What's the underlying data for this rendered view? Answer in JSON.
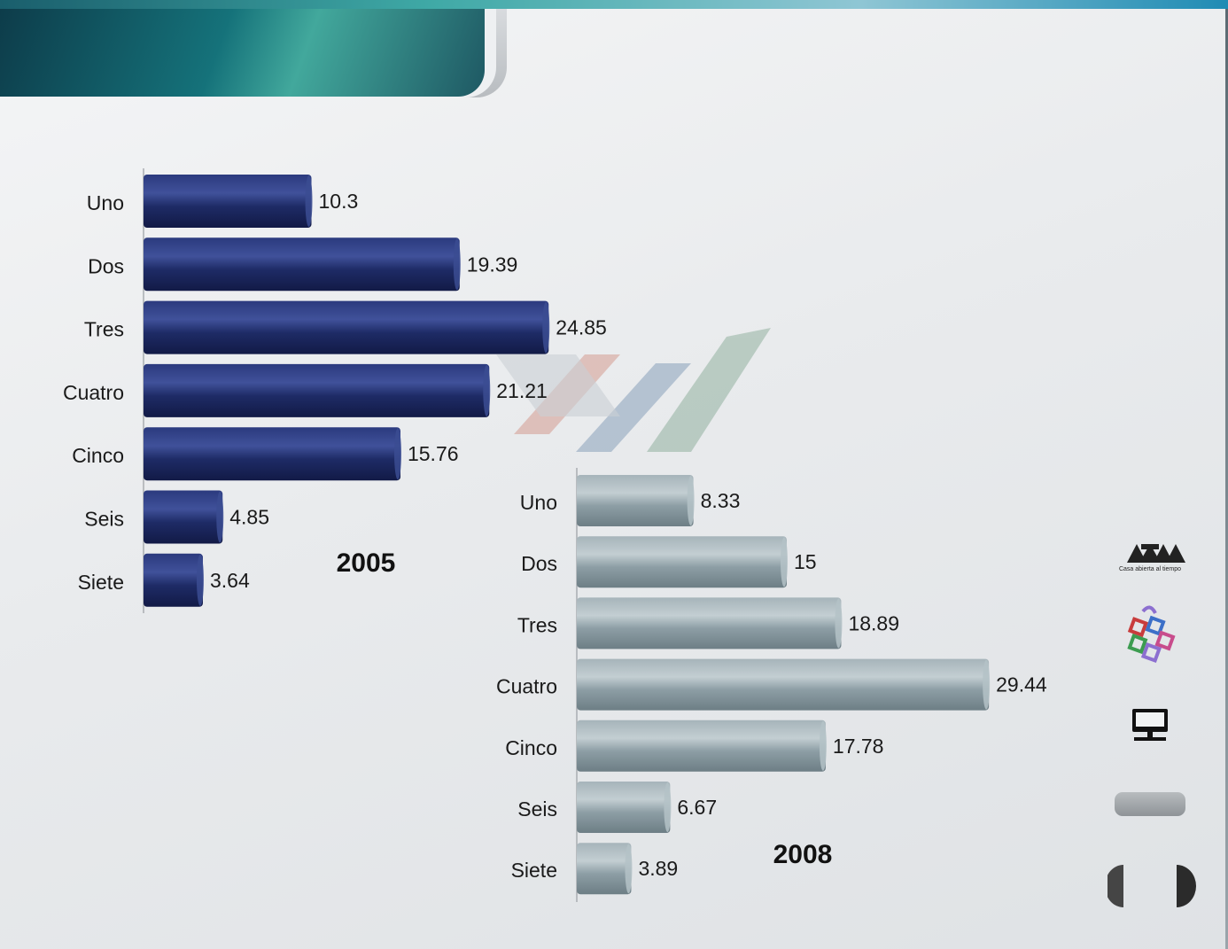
{
  "colors": {
    "series_2005": "#1f2d6a",
    "series_2008": "#8f9fa6",
    "header_teal": "#15727a"
  },
  "chart_data": [
    {
      "type": "bar",
      "orientation": "horizontal",
      "title": "2005",
      "categories": [
        "Uno",
        "Dos",
        "Tres",
        "Cuatro",
        "Cinco",
        "Seis",
        "Siete"
      ],
      "values": [
        10.3,
        19.39,
        24.85,
        21.21,
        15.76,
        4.85,
        3.64
      ],
      "value_labels": [
        "10.3",
        "19.39",
        "24.85",
        "21.21",
        "15.76",
        "4.85",
        "3.64"
      ],
      "xlim": [
        0,
        30
      ],
      "grid": false,
      "legend": "none"
    },
    {
      "type": "bar",
      "orientation": "horizontal",
      "title": "2008",
      "categories": [
        "Uno",
        "Dos",
        "Tres",
        "Cuatro",
        "Cinco",
        "Seis",
        "Siete"
      ],
      "values": [
        8.33,
        15,
        18.89,
        29.44,
        17.78,
        6.67,
        3.89
      ],
      "value_labels": [
        "8.33",
        "15",
        "18.89",
        "29.44",
        "17.78",
        "6.67",
        "3.89"
      ],
      "xlim": [
        0,
        30
      ],
      "grid": false,
      "legend": "none"
    }
  ],
  "side_icons": [
    {
      "icon": "uam-logo-icon",
      "caption": "Casa abierta al tiempo"
    },
    {
      "icon": "colored-squares-logo-icon"
    },
    {
      "icon": "computer-monitor-icon"
    },
    {
      "icon": "nav-pill-button-icon"
    },
    {
      "icon": "prev-arrow-icon"
    },
    {
      "icon": "next-arrow-icon"
    }
  ]
}
